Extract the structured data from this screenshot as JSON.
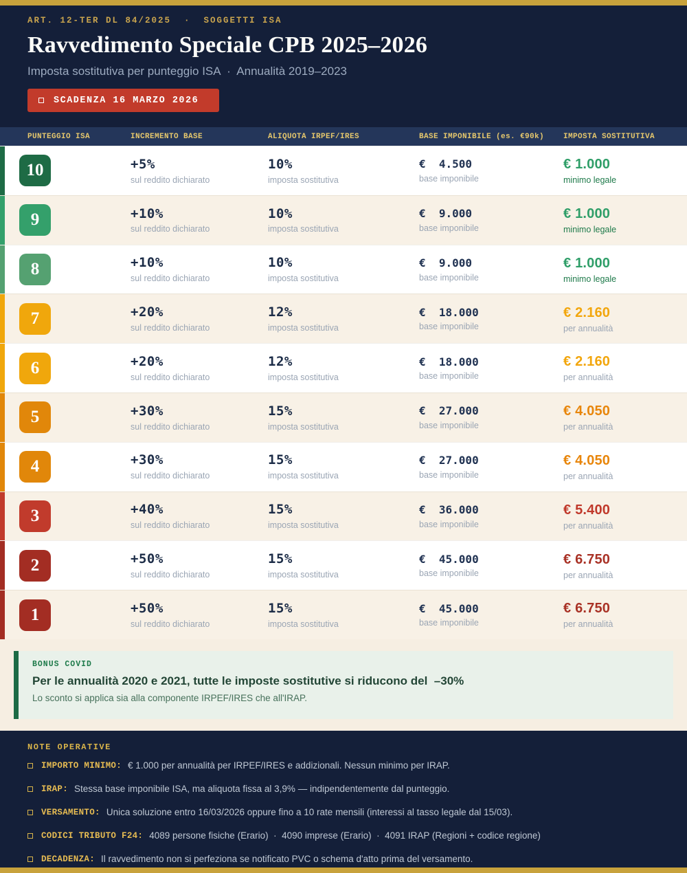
{
  "header": {
    "kicker": "ART. 12-TER DL 84/2025  ·  SOGGETTI ISA",
    "title": "Ravvedimento Speciale CPB 2025–2026",
    "subtitle": "Imposta sostitutiva per punteggio ISA  ·  Annualità 2019–2023",
    "deadline": "SCADENZA 16 MARZO 2026"
  },
  "colors": {
    "gold_bar": "#c8a23c",
    "navy": "#141f39",
    "table_header_bg": "#24365a",
    "deadline_red": "#c23b2b",
    "row_cream": "#f8f1e6",
    "bonus_green": "#1d6b45"
  },
  "table": {
    "columns": [
      "PUNTEGGIO ISA",
      "INCREMENTO BASE",
      "ALIQUOTA IRPEF/IRES",
      "BASE IMPONIBILE (es. €90k)",
      "IMPOSTA SOSTITUTIVA"
    ],
    "sublabels": {
      "increment": "sul reddito dichiarato",
      "rate": "imposta sostitutiva",
      "base": "base imponibile"
    },
    "rows": [
      {
        "score": "10",
        "color": "#1e6b45",
        "increment": "+5%",
        "rate": "10%",
        "base": "€  4.500",
        "tax": "€ 1.000",
        "tax_note": "minimo legale",
        "tax_color": "#2f9e68",
        "tax_note_color": "#1e7a4a",
        "bg": "#ffffff"
      },
      {
        "score": "9",
        "color": "#34a06b",
        "increment": "+10%",
        "rate": "10%",
        "base": "€  9.000",
        "tax": "€ 1.000",
        "tax_note": "minimo legale",
        "tax_color": "#2f9e68",
        "tax_note_color": "#1e7a4a",
        "bg": "#f8f1e6"
      },
      {
        "score": "8",
        "color": "#55a171",
        "increment": "+10%",
        "rate": "10%",
        "base": "€  9.000",
        "tax": "€ 1.000",
        "tax_note": "minimo legale",
        "tax_color": "#2f9e68",
        "tax_note_color": "#1e7a4a",
        "bg": "#ffffff"
      },
      {
        "score": "7",
        "color": "#f0a70c",
        "increment": "+20%",
        "rate": "12%",
        "base": "€  18.000",
        "tax": "€ 2.160",
        "tax_note": "per annualità",
        "tax_color": "#f2a60d",
        "tax_note_color": "#9aa5b4",
        "bg": "#f8f1e6"
      },
      {
        "score": "6",
        "color": "#f0a70c",
        "increment": "+20%",
        "rate": "12%",
        "base": "€  18.000",
        "tax": "€ 2.160",
        "tax_note": "per annualità",
        "tax_color": "#f2a60d",
        "tax_note_color": "#9aa5b4",
        "bg": "#ffffff"
      },
      {
        "score": "5",
        "color": "#e1870a",
        "increment": "+30%",
        "rate": "15%",
        "base": "€  27.000",
        "tax": "€ 4.050",
        "tax_note": "per annualità",
        "tax_color": "#e8860b",
        "tax_note_color": "#9aa5b4",
        "bg": "#f8f1e6"
      },
      {
        "score": "4",
        "color": "#e1870a",
        "increment": "+30%",
        "rate": "15%",
        "base": "€  27.000",
        "tax": "€ 4.050",
        "tax_note": "per annualità",
        "tax_color": "#e8860b",
        "tax_note_color": "#9aa5b4",
        "bg": "#ffffff"
      },
      {
        "score": "3",
        "color": "#c13b2c",
        "increment": "+40%",
        "rate": "15%",
        "base": "€  36.000",
        "tax": "€ 5.400",
        "tax_note": "per annualità",
        "tax_color": "#c0392b",
        "tax_note_color": "#9aa5b4",
        "bg": "#f8f1e6"
      },
      {
        "score": "2",
        "color": "#a32d23",
        "increment": "+50%",
        "rate": "15%",
        "base": "€  45.000",
        "tax": "€ 6.750",
        "tax_note": "per annualità",
        "tax_color": "#a93226",
        "tax_note_color": "#9aa5b4",
        "bg": "#ffffff"
      },
      {
        "score": "1",
        "color": "#a32d23",
        "increment": "+50%",
        "rate": "15%",
        "base": "€  45.000",
        "tax": "€ 6.750",
        "tax_note": "per annualità",
        "tax_color": "#a93226",
        "tax_note_color": "#9aa5b4",
        "bg": "#f8f1e6"
      }
    ]
  },
  "bonus": {
    "label": "BONUS COVID",
    "title": "Per le annualità 2020 e 2021, tutte le imposte sostitutive si riducono del  –30%",
    "text": "Lo sconto si applica sia alla componente IRPEF/IRES che all'IRAP."
  },
  "notes": {
    "heading": "NOTE OPERATIVE",
    "items": [
      {
        "label": "IMPORTO MINIMO:",
        "text": "€ 1.000 per annualità per IRPEF/IRES e addizionali. Nessun minimo per IRAP."
      },
      {
        "label": "IRAP:",
        "text": "Stessa base imponibile ISA, ma aliquota fissa al 3,9% — indipendentemente dal punteggio."
      },
      {
        "label": "VERSAMENTO:",
        "text": "Unica soluzione entro 16/03/2026 oppure fino a 10 rate mensili (interessi al tasso legale dal 15/03)."
      },
      {
        "label": "CODICI TRIBUTO F24:",
        "text": "4089 persone fisiche (Erario)  ·  4090 imprese (Erario)  ·  4091 IRAP (Regioni + codice regione)"
      },
      {
        "label": "DECADENZA:",
        "text": "Il ravvedimento non si perfeziona se notificato PVC o schema d'atto prima del versamento."
      }
    ]
  }
}
